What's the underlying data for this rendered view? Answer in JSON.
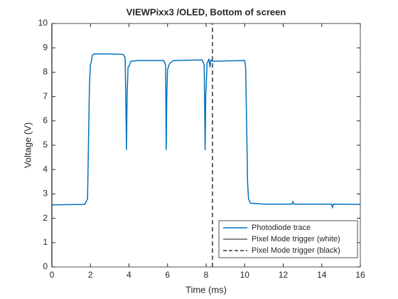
{
  "chart_data": {
    "type": "line",
    "title": "VIEWPixx3 /OLED, Bottom of screen",
    "xlabel": "Time (ms)",
    "ylabel": "Voltage (V)",
    "xlim": [
      0,
      16
    ],
    "xticks": [
      0,
      2,
      4,
      6,
      8,
      10,
      12,
      14,
      16
    ],
    "ylim": [
      0,
      10
    ],
    "yticks": [
      0,
      1,
      2,
      3,
      4,
      5,
      6,
      7,
      8,
      9,
      10
    ],
    "grid": false,
    "legend": "lower right",
    "series": [
      {
        "name": "Photodiode trace",
        "color": "#0072bd",
        "dashed": false,
        "x": [
          0,
          1.7,
          1.85,
          1.95,
          2.0,
          2.05,
          2.1,
          2.2,
          3.0,
          3.7,
          3.8,
          3.85,
          3.87,
          3.9,
          3.95,
          4.0,
          4.1,
          4.5,
          5.8,
          5.9,
          5.93,
          5.96,
          6.0,
          6.1,
          6.3,
          7.8,
          7.9,
          7.95,
          7.98,
          8.05,
          8.15,
          8.2,
          8.25,
          8.35,
          10.0,
          10.05,
          10.1,
          10.15,
          10.2,
          10.3,
          11.0,
          12.45,
          12.5,
          12.55,
          14.5,
          14.55,
          14.6,
          16.0
        ],
        "values": [
          2.55,
          2.57,
          2.8,
          7.5,
          8.3,
          8.45,
          8.7,
          8.75,
          8.75,
          8.73,
          8.6,
          6.0,
          4.8,
          7.0,
          8.2,
          8.25,
          8.45,
          8.48,
          8.48,
          8.3,
          4.8,
          7.0,
          8.1,
          8.35,
          8.48,
          8.5,
          8.3,
          4.8,
          7.0,
          8.35,
          8.55,
          8.2,
          8.5,
          8.45,
          8.48,
          8.2,
          6.0,
          3.5,
          2.8,
          2.62,
          2.58,
          2.58,
          2.68,
          2.58,
          2.58,
          2.45,
          2.58,
          2.57
        ]
      },
      {
        "name": "Pixel Mode trigger (white)",
        "color": "#646464",
        "dashed": false,
        "x": [
          0,
          0
        ],
        "values": [
          0,
          10
        ]
      },
      {
        "name": "Pixel Mode trigger (black)",
        "color": "#646464",
        "dashed": true,
        "x": [
          8.33,
          8.33
        ],
        "values": [
          0,
          10
        ]
      }
    ]
  }
}
